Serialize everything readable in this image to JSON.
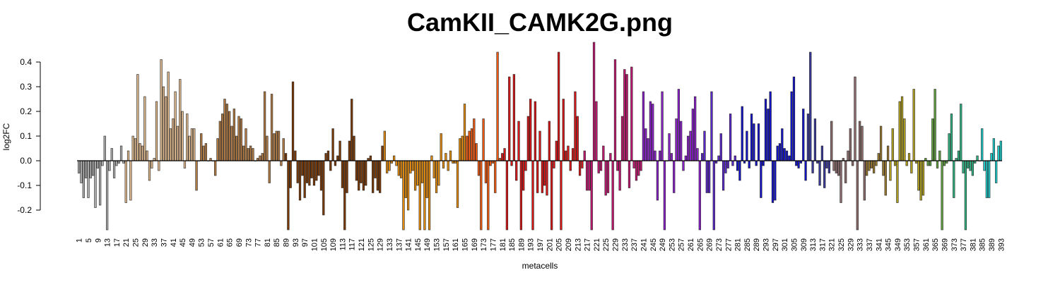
{
  "chart_data": {
    "type": "bar",
    "title": "CamKII_CAMK2G.png",
    "xlabel": "metacells",
    "ylabel": "log2FC",
    "ylim": [
      -0.28,
      0.48
    ],
    "yticks": [
      -0.2,
      -0.1,
      0.0,
      0.1,
      0.2,
      0.3,
      0.4
    ],
    "ytick_labels": [
      "-0.2",
      "-0.1",
      "0.0",
      "0.1",
      "0.2",
      "0.3",
      "0.4"
    ],
    "n_bars": 395,
    "xtick_labels": [
      "1",
      "5",
      "9",
      "13",
      "17",
      "21",
      "25",
      "29",
      "33",
      "37",
      "41",
      "45",
      "49",
      "53",
      "57",
      "61",
      "65",
      "69",
      "73",
      "77",
      "81",
      "85",
      "89",
      "93",
      "97",
      "101",
      "105",
      "109",
      "113",
      "117",
      "121",
      "125",
      "129",
      "133",
      "137",
      "141",
      "145",
      "149",
      "153",
      "157",
      "161",
      "165",
      "169",
      "173",
      "177",
      "181",
      "185",
      "189",
      "193",
      "197",
      "201",
      "205",
      "209",
      "213",
      "217",
      "221",
      "225",
      "229",
      "233",
      "237",
      "241",
      "245",
      "249",
      "253",
      "257",
      "261",
      "265",
      "269",
      "273",
      "277",
      "281",
      "285",
      "289",
      "293",
      "297",
      "301",
      "305",
      "309",
      "313",
      "317",
      "321",
      "325",
      "329",
      "333",
      "337",
      "341",
      "345",
      "349",
      "353",
      "357",
      "361",
      "365",
      "369",
      "373",
      "377",
      "381",
      "385",
      "389",
      "393"
    ],
    "color_groups": [
      {
        "from": 1,
        "to": 20,
        "color": "#a9a9a9"
      },
      {
        "from": 21,
        "to": 50,
        "color": "#d9b48a"
      },
      {
        "from": 51,
        "to": 88,
        "color": "#b07a45"
      },
      {
        "from": 89,
        "to": 130,
        "color": "#7a3a08"
      },
      {
        "from": 131,
        "to": 165,
        "color": "#e08a10"
      },
      {
        "from": 166,
        "to": 180,
        "color": "#f05a10"
      },
      {
        "from": 181,
        "to": 215,
        "color": "#d81818"
      },
      {
        "from": 216,
        "to": 240,
        "color": "#c01870"
      },
      {
        "from": 241,
        "to": 265,
        "color": "#8a20c8"
      },
      {
        "from": 266,
        "to": 280,
        "color": "#5a28c8"
      },
      {
        "from": 281,
        "to": 310,
        "color": "#1414c8"
      },
      {
        "from": 311,
        "to": 320,
        "color": "#3a3a9a"
      },
      {
        "from": 321,
        "to": 335,
        "color": "#8a6a6a"
      },
      {
        "from": 336,
        "to": 345,
        "color": "#9a7a30"
      },
      {
        "from": 346,
        "to": 360,
        "color": "#b0a020"
      },
      {
        "from": 361,
        "to": 370,
        "color": "#60a040"
      },
      {
        "from": 371,
        "to": 383,
        "color": "#30b080"
      },
      {
        "from": 384,
        "to": 395,
        "color": "#20c8c8"
      }
    ],
    "values": [
      -0.05,
      -0.09,
      -0.15,
      -0.07,
      -0.15,
      -0.07,
      -0.06,
      -0.19,
      -0.03,
      -0.18,
      -0.02,
      0.1,
      -0.28,
      -0.04,
      0.05,
      -0.07,
      -0.02,
      -0.01,
      0.06,
      -0.01,
      -0.17,
      0.04,
      -0.16,
      0.1,
      0.09,
      0.35,
      0.07,
      0.06,
      0.26,
      0.04,
      -0.08,
      -0.03,
      0.01,
      0.24,
      -0.04,
      0.41,
      0.3,
      0.26,
      0.36,
      0.13,
      0.17,
      0.28,
      0.14,
      0.33,
      0.2,
      -0.03,
      0.19,
      0.1,
      0.13,
      0.13,
      -0.12,
      0.0,
      0.11,
      0.06,
      0.07,
      0.0,
      0.01,
      0.0,
      -0.06,
      0.09,
      0.16,
      0.19,
      0.25,
      0.23,
      0.2,
      0.14,
      0.21,
      0.1,
      0.18,
      0.17,
      0.06,
      0.13,
      0.05,
      0.06,
      0.05,
      0.0,
      0.01,
      0.02,
      0.03,
      0.28,
      0.1,
      -0.09,
      0.27,
      0.11,
      0.12,
      0.12,
      -0.02,
      0.09,
      0.03,
      -0.28,
      -0.11,
      0.32,
      0.04,
      -0.09,
      -0.16,
      -0.06,
      -0.15,
      -0.09,
      -0.1,
      -0.07,
      -0.1,
      -0.08,
      -0.06,
      -0.12,
      -0.22,
      0.03,
      0.04,
      -0.04,
      0.13,
      -0.02,
      0.02,
      0.08,
      -0.11,
      -0.28,
      -0.13,
      0.08,
      0.25,
      0.1,
      -0.08,
      -0.12,
      -0.09,
      -0.12,
      -0.1,
      0.01,
      0.02,
      -0.13,
      -0.07,
      -0.12,
      -0.13,
      0.06,
      0.12,
      -0.05,
      -0.04,
      -0.01,
      0.02,
      -0.02,
      -0.06,
      -0.07,
      -0.28,
      -0.15,
      -0.2,
      -0.05,
      -0.04,
      -0.12,
      -0.1,
      -0.28,
      -0.09,
      -0.28,
      -0.15,
      -0.28,
      0.02,
      -0.07,
      -0.13,
      -0.1,
      0.11,
      -0.03,
      0.03,
      -0.04,
      0.04,
      -0.01,
      -0.01,
      -0.19,
      0.09,
      0.1,
      0.23,
      0.1,
      0.12,
      0.13,
      0.17,
      0.07,
      -0.06,
      -0.28,
      0.17,
      -0.09,
      -0.28,
      -0.02,
      -0.01,
      -0.13,
      0.44,
      0.01,
      0.03,
      0.05,
      -0.28,
      0.34,
      -0.02,
      0.35,
      -0.08,
      0.16,
      -0.28,
      -0.12,
      -0.04,
      0.18,
      0.25,
      -0.28,
      0.24,
      -0.13,
      0.12,
      -0.13,
      -0.1,
      -0.14,
      0.16,
      -0.28,
      -0.03,
      0.08,
      0.44,
      -0.28,
      0.25,
      0.04,
      0.06,
      -0.04,
      0.05,
      0.28,
      0.18,
      -0.06,
      -0.03,
      0.04,
      -0.12,
      -0.12,
      -0.28,
      0.48,
      0.24,
      -0.05,
      -0.04,
      0.06,
      -0.14,
      -0.13,
      0.03,
      -0.28,
      0.41,
      -0.04,
      -0.12,
      0.18,
      0.37,
      0.35,
      -0.11,
      0.38,
      -0.03,
      -0.08,
      -0.06,
      -0.04,
      0.28,
      0.13,
      0.09,
      0.24,
      0.23,
      0.04,
      -0.16,
      0.04,
      0.28,
      -0.28,
      0.0,
      0.11,
      0.03,
      -0.13,
      0.17,
      0.29,
      0.16,
      -0.04,
      0.02,
      0.1,
      0.12,
      0.21,
      0.26,
      0.05,
      -0.28,
      0.03,
      0.12,
      -0.13,
      -0.13,
      0.28,
      -0.28,
      -0.01,
      0.02,
      0.11,
      -0.12,
      -0.05,
      -0.03,
      0.19,
      -0.02,
      0.02,
      -0.04,
      -0.08,
      0.22,
      -0.01,
      0.12,
      -0.03,
      0.19,
      0.15,
      -0.02,
      0.15,
      -0.15,
      -0.02,
      0.25,
      0.21,
      0.28,
      -0.17,
      -0.16,
      0.06,
      0.07,
      0.13,
      0.05,
      0.04,
      0.02,
      0.28,
      0.34,
      -0.02,
      -0.03,
      -0.01,
      0.21,
      -0.08,
      0.19,
      0.44,
      -0.05,
      0.17,
      -0.01,
      -0.1,
      0.06,
      -0.11,
      -0.03,
      -0.05,
      0.16,
      -0.04,
      -0.05,
      -0.06,
      -0.17,
      0.01,
      -0.09,
      0.04,
      0.13,
      -0.02,
      0.34,
      -0.28,
      0.16,
      0.14,
      -0.16,
      -0.06,
      -0.04,
      -0.03,
      -0.05,
      -0.02,
      0.03,
      0.14,
      -0.06,
      -0.14,
      0.06,
      -0.08,
      0.13,
      -0.02,
      -0.17,
      0.24,
      0.26,
      0.17,
      -0.02,
      0.03,
      -0.05,
      0.29,
      -0.01,
      -0.12,
      -0.16,
      -0.14,
      0.01,
      -0.02,
      -0.02,
      0.17,
      0.29,
      -0.03,
      0.04,
      -0.28,
      -0.02,
      -0.01,
      0.11,
      0.19,
      -0.15,
      0.01,
      0.04,
      0.23,
      -0.05,
      -0.28,
      -0.03,
      -0.04,
      -0.06,
      -0.01,
      0.02,
      0.0,
      0.13,
      -0.04,
      -0.15,
      -0.15,
      0.03,
      0.09,
      -0.09,
      0.06,
      0.08
    ]
  }
}
